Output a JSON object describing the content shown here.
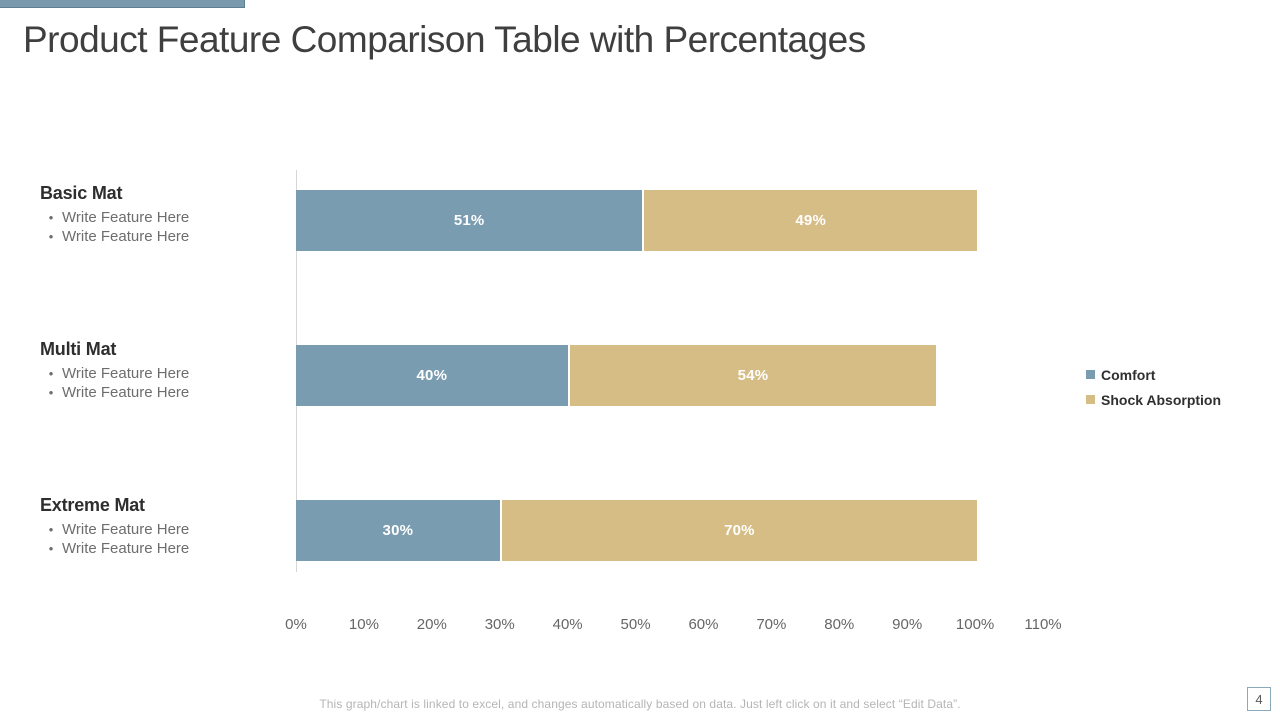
{
  "slide": {
    "title": "Product Feature Comparison Table with Percentages",
    "page_number": "4",
    "footer_note": "This graph/chart is linked to excel, and changes automatically based on data. Just left click on it and select “Edit Data”.",
    "accent_color": "#7a99ac"
  },
  "chart_data": {
    "type": "bar",
    "orientation": "horizontal",
    "stacked": true,
    "categories": [
      "Basic Mat",
      "Multi Mat",
      "Extreme Mat"
    ],
    "category_features": [
      [
        "Write Feature Here",
        "Write Feature Here"
      ],
      [
        "Write Feature Here",
        "Write Feature Here"
      ],
      [
        "Write Feature Here",
        "Write Feature Here"
      ]
    ],
    "bullet_glyph": "•",
    "series": [
      {
        "name": "Comfort",
        "color": "#7a9cb0",
        "values": [
          51,
          40,
          30
        ]
      },
      {
        "name": "Shock Absorption",
        "color": "#d6bc85",
        "values": [
          49,
          54,
          70
        ]
      }
    ],
    "value_suffix": "%",
    "x_ticks": [
      "0%",
      "10%",
      "20%",
      "30%",
      "40%",
      "50%",
      "60%",
      "70%",
      "80%",
      "90%",
      "100%",
      "110%"
    ],
    "xlim": [
      0,
      110
    ],
    "grid": false,
    "legend_position": "right"
  }
}
